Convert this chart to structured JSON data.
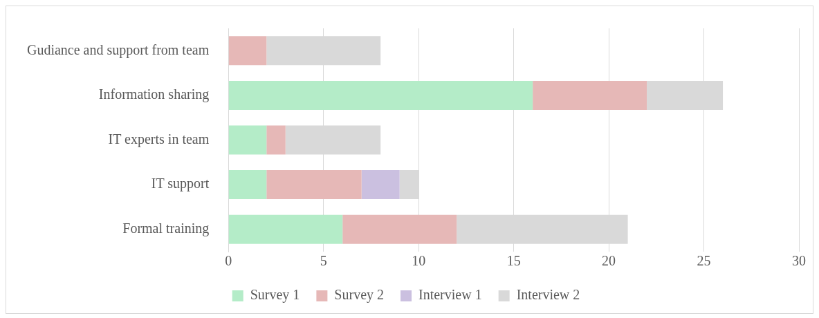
{
  "chart_data": {
    "type": "bar",
    "orientation": "horizontal",
    "stacked": true,
    "categories": [
      "Gudiance and support from team",
      "Information sharing",
      "IT experts in team",
      "IT support",
      "Formal training"
    ],
    "series": [
      {
        "name": "Survey 1",
        "color": "#b4ecc8",
        "values": [
          0,
          16,
          2,
          2,
          6
        ]
      },
      {
        "name": "Survey 2",
        "color": "#e6b8b7",
        "values": [
          2,
          6,
          1,
          5,
          6
        ]
      },
      {
        "name": "Interview 1",
        "color": "#cbc0e0",
        "values": [
          0,
          0,
          0,
          2,
          0
        ]
      },
      {
        "name": "Interview 2",
        "color": "#d9d9d9",
        "values": [
          6,
          4,
          5,
          1,
          9
        ]
      }
    ],
    "xlim": [
      0,
      30
    ],
    "xticks": [
      0,
      5,
      10,
      15,
      20,
      25,
      30
    ],
    "grid": "x",
    "legend": "bottom"
  }
}
